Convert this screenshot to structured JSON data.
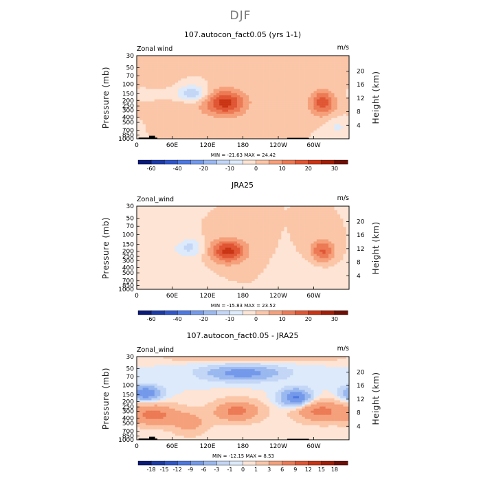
{
  "figure": {
    "title": "DJF",
    "colors": {
      "palette": [
        "#0a1a78",
        "#1c3aa6",
        "#2f56c9",
        "#4d78e0",
        "#7499ea",
        "#9ab8f0",
        "#c3d6f6",
        "#ddeafb",
        "#fde4d4",
        "#fbc6a8",
        "#f5a07a",
        "#ec7a55",
        "#e05533",
        "#c93414",
        "#a01e08",
        "#6e0e04"
      ],
      "land": "#000000"
    }
  },
  "chart_data": [
    {
      "type": "heatmap",
      "title": "107.autocon_fact0.05 (yrs 1-1)",
      "variable_label": "Zonal wind",
      "units_label": "m/s",
      "xlabel": "",
      "ylabel": "Pressure (mb)",
      "ylabel_right": "Height (km)",
      "x_range": [
        0,
        360
      ],
      "x_ticks": [
        "0",
        "60E",
        "120E",
        "180",
        "120W",
        "60W"
      ],
      "y_ticks": [
        "30",
        "50",
        "70",
        "100",
        "150",
        "200",
        "250",
        "300",
        "400",
        "500",
        "700",
        "850",
        "1000"
      ],
      "y_right_ticks": [
        "20",
        "16",
        "12",
        "8",
        "4"
      ],
      "stats_text": "MIN = -21.63   MAX =  24.42",
      "colorbar_levels": [
        -70,
        -60,
        -50,
        -40,
        -30,
        -20,
        -15,
        -10,
        -5,
        0,
        5,
        10,
        15,
        20,
        25,
        30
      ],
      "colorbar_labels": [
        "-60",
        "-40",
        "-20",
        "-10",
        "0",
        "10",
        "20",
        "30"
      ],
      "features": [
        {
          "lon": 150,
          "p": 220,
          "value": 22,
          "lon_spread": 35,
          "p_spread": 0.55
        },
        {
          "lon": 315,
          "p": 220,
          "value": 18,
          "lon_spread": 22,
          "p_spread": 0.55
        },
        {
          "lon": 60,
          "p": 230,
          "value": 6,
          "lon_spread": 45,
          "p_spread": 0.7
        },
        {
          "lon": 95,
          "p": 145,
          "value": -14,
          "lon_spread": 25,
          "p_spread": 0.35
        },
        {
          "lon": 55,
          "p": 170,
          "value": -6,
          "lon_spread": 45,
          "p_spread": 0.35
        },
        {
          "lon": 340,
          "p": 600,
          "value": -6,
          "lon_spread": 20,
          "p_spread": 0.4
        }
      ],
      "land_segments": [
        {
          "lon_start": 3,
          "lon_end": 35,
          "top_p": 950
        },
        {
          "lon_start": 21,
          "lon_end": 31,
          "top_p": 880
        },
        {
          "lon_start": 255,
          "lon_end": 292,
          "top_p": 960
        }
      ]
    },
    {
      "type": "heatmap",
      "title": "JRA25",
      "variable_label": "Zonal_wind",
      "units_label": "m/s",
      "xlabel": "",
      "ylabel": "Pressure (mb)",
      "ylabel_right": "Height (km)",
      "x_range": [
        0,
        360
      ],
      "x_ticks": [
        "0",
        "60E",
        "120E",
        "180",
        "120W",
        "60W"
      ],
      "y_ticks": [
        "30",
        "50",
        "70",
        "100",
        "150",
        "200",
        "250",
        "300",
        "400",
        "500",
        "700",
        "850",
        "1000"
      ],
      "y_right_ticks": [
        "20",
        "16",
        "12",
        "8",
        "4"
      ],
      "stats_text": "MIN = -15.83   MAX =  23.52",
      "colorbar_levels": [
        -70,
        -60,
        -50,
        -40,
        -30,
        -20,
        -15,
        -10,
        -5,
        0,
        5,
        10,
        15,
        20,
        25,
        30
      ],
      "colorbar_labels": [
        "-60",
        "-40",
        "-20",
        "-10",
        "0",
        "10",
        "20",
        "30"
      ],
      "features": [
        {
          "lon": 155,
          "p": 200,
          "value": 22,
          "lon_spread": 30,
          "p_spread": 0.5
        },
        {
          "lon": 315,
          "p": 200,
          "value": 16,
          "lon_spread": 20,
          "p_spread": 0.5
        },
        {
          "lon": 90,
          "p": 170,
          "value": -11,
          "lon_spread": 22,
          "p_spread": 0.35
        },
        {
          "lon": 60,
          "p": 400,
          "value": -4,
          "lon_spread": 50,
          "p_spread": 0.8
        },
        {
          "lon": 300,
          "p": 500,
          "value": -3,
          "lon_spread": 40,
          "p_spread": 0.6
        }
      ],
      "land_segments": []
    },
    {
      "type": "heatmap",
      "title": "107.autocon_fact0.05 - JRA25",
      "variable_label": "Zonal_wind",
      "units_label": "m/s",
      "xlabel": "",
      "ylabel": "Pressure (mb)",
      "ylabel_right": "Height (km)",
      "x_range": [
        0,
        360
      ],
      "x_ticks": [
        "0",
        "60E",
        "120E",
        "180",
        "120W",
        "60W"
      ],
      "y_ticks": [
        "30",
        "50",
        "70",
        "100",
        "150",
        "200",
        "250",
        "300",
        "400",
        "500",
        "700",
        "850",
        "1000"
      ],
      "y_right_ticks": [
        "20",
        "16",
        "12",
        "8",
        "4"
      ],
      "stats_text": "MIN = -12.15   MAX =    8.53",
      "colorbar_levels": [
        -21,
        -18,
        -15,
        -12,
        -9,
        -6,
        -3,
        -1,
        0,
        1,
        3,
        6,
        9,
        12,
        15,
        18
      ],
      "colorbar_labels": [
        "-18",
        "-15",
        "-12",
        "-9",
        "-6",
        "-3",
        "-1",
        "0",
        "1",
        "3",
        "6",
        "9",
        "12",
        "15",
        "18"
      ],
      "features": [
        {
          "lon": 270,
          "p": 170,
          "value": -10,
          "lon_spread": 25,
          "p_spread": 0.35
        },
        {
          "lon": 15,
          "p": 140,
          "value": -9,
          "lon_spread": 25,
          "p_spread": 0.3
        },
        {
          "lon": 180,
          "p": 60,
          "value": -8,
          "lon_spread": 60,
          "p_spread": 0.3
        },
        {
          "lon": 170,
          "p": 300,
          "value": 7,
          "lon_spread": 40,
          "p_spread": 0.45
        },
        {
          "lon": 310,
          "p": 300,
          "value": 7,
          "lon_spread": 40,
          "p_spread": 0.45
        },
        {
          "lon": 30,
          "p": 350,
          "value": 7,
          "lon_spread": 40,
          "p_spread": 0.45
        },
        {
          "lon": 90,
          "p": 500,
          "value": 4,
          "lon_spread": 30,
          "p_spread": 0.5
        },
        {
          "lon": 200,
          "p": 32,
          "value": 3,
          "lon_spread": 150,
          "p_spread": 0.15
        }
      ],
      "land_segments": [
        {
          "lon_start": 3,
          "lon_end": 35,
          "top_p": 950
        },
        {
          "lon_start": 21,
          "lon_end": 31,
          "top_p": 880
        },
        {
          "lon_start": 255,
          "lon_end": 292,
          "top_p": 960
        }
      ]
    }
  ]
}
